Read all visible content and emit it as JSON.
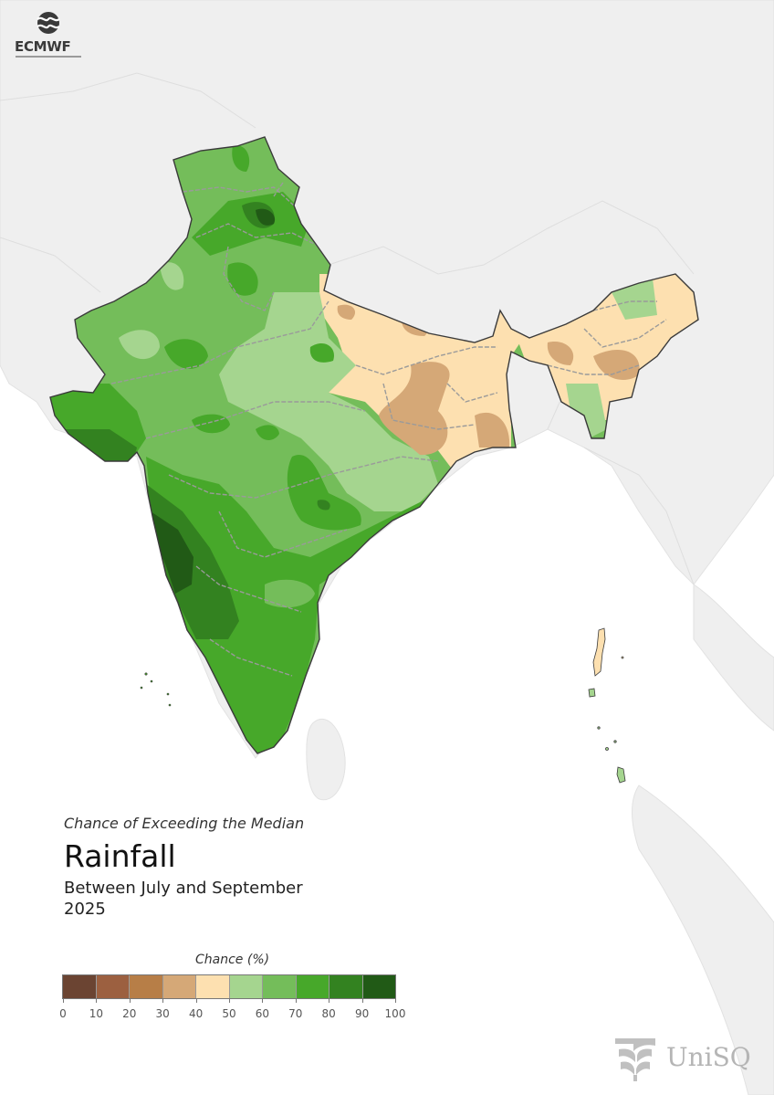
{
  "header": {
    "org_name": "ECMWF",
    "logo_icon": "ecmwf-logo-icon"
  },
  "map": {
    "region": "India",
    "variable": "Rainfall",
    "colors": {
      "ocean": "#ffffff",
      "land_outside": "#efefef",
      "country_border": "#3a3a3a",
      "state_border": "#999999"
    }
  },
  "text": {
    "subtitle": "Chance of Exceeding the Median",
    "title": "Rainfall",
    "period_line1": "Between July and September",
    "period_line2": "2025"
  },
  "legend": {
    "title": "Chance (%)",
    "ticks": [
      "0",
      "10",
      "20",
      "30",
      "40",
      "50",
      "60",
      "70",
      "80",
      "90",
      "100"
    ],
    "colors": [
      "#6b4432",
      "#9c6040",
      "#b77e47",
      "#d5a877",
      "#fde0b0",
      "#a5d58f",
      "#74bd5a",
      "#47a82a",
      "#338220",
      "#215a16"
    ]
  },
  "footer": {
    "brand": "UniSQ",
    "logo_icon": "unisq-logo-icon"
  }
}
